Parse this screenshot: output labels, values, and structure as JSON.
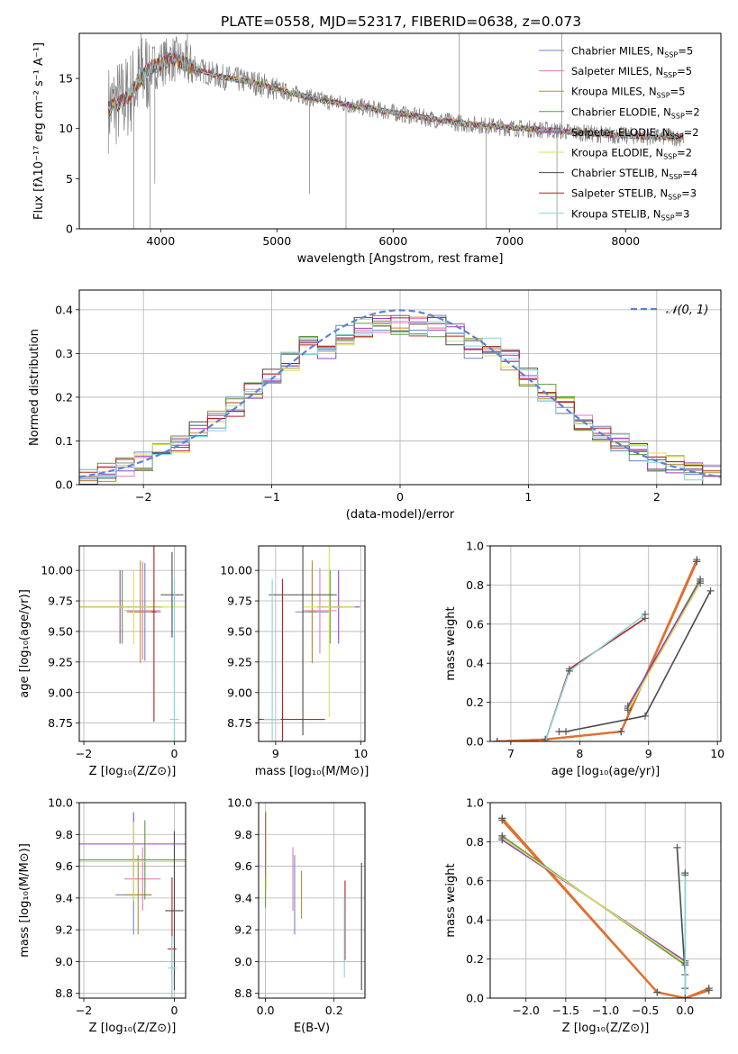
{
  "figure_title": "PLATE=0558, MJD=52317, FIBERID=0638, z=0.073",
  "colors": {
    "Chabrier MILES": "#6f86c4",
    "Salpeter MILES": "#e67ab8",
    "Kroupa MILES": "#b5902d",
    "Chabrier ELODIE": "#5a9a3b",
    "Salpeter ELODIE": "#9b3fc0",
    "Kroupa ELODIE": "#d6e05e",
    "Chabrier STELIB": "#4a4a4a",
    "Salpeter STELIB": "#b8201f",
    "Kroupa STELIB": "#86d4dc",
    "data": "#808080",
    "orange": "#e07030",
    "gaussian": "#5b82d6"
  },
  "chart_data": [
    {
      "id": "spectrum",
      "type": "line",
      "title": "PLATE=0558, MJD=52317, FIBERID=0638, z=0.073",
      "xlabel": "wavelength [Angstrom, rest frame]",
      "ylabel": "Flux [fλ10⁻¹⁷ erg cm⁻² s⁻¹ A⁻¹]",
      "xlim": [
        3300,
        8820
      ],
      "ylim": [
        0,
        19.5
      ],
      "xticks": [
        4000,
        5000,
        6000,
        7000,
        8000
      ],
      "yticks": [
        0,
        5,
        10,
        15
      ],
      "legend": "top-right",
      "legend_entries": [
        {
          "name": "Chabrier MILES",
          "sub": "SSP",
          "n": "5"
        },
        {
          "name": "Salpeter MILES",
          "sub": "SSP",
          "n": "5"
        },
        {
          "name": "Kroupa MILES",
          "sub": "SSP",
          "n": "5"
        },
        {
          "name": "Chabrier ELODIE",
          "sub": "SSP",
          "n": "2"
        },
        {
          "name": "Salpeter ELODIE",
          "sub": "SSP",
          "n": "2"
        },
        {
          "name": "Kroupa ELODIE",
          "sub": "SSP",
          "n": "2"
        },
        {
          "name": "Chabrier STELIB",
          "sub": "SSP",
          "n": "4"
        },
        {
          "name": "Salpeter STELIB",
          "sub": "SSP",
          "n": "3"
        },
        {
          "name": "Kroupa STELIB",
          "sub": "SSP",
          "n": "3"
        }
      ],
      "continuum": [
        [
          3550,
          12.0
        ],
        [
          3700,
          13.0
        ],
        [
          3900,
          16.0
        ],
        [
          4100,
          17.0
        ],
        [
          4300,
          16.0
        ],
        [
          4500,
          15.2
        ],
        [
          4800,
          14.6
        ],
        [
          5100,
          13.6
        ],
        [
          5400,
          12.8
        ],
        [
          5800,
          12.0
        ],
        [
          6200,
          11.2
        ],
        [
          6600,
          10.5
        ],
        [
          7000,
          10.1
        ],
        [
          7400,
          9.8
        ],
        [
          7800,
          9.4
        ],
        [
          8200,
          9.2
        ],
        [
          8500,
          9.1
        ]
      ],
      "spikes": [
        [
          3770,
          0
        ],
        [
          3830,
          19.5
        ],
        [
          3910,
          0
        ],
        [
          3950,
          4.5
        ],
        [
          4230,
          19.5
        ],
        [
          5280,
          3.5
        ],
        [
          5595,
          0
        ],
        [
          6570,
          19.5
        ],
        [
          6800,
          0
        ],
        [
          7410,
          0
        ],
        [
          7450,
          19.5
        ]
      ]
    },
    {
      "id": "residuals",
      "type": "line",
      "xlabel": "(data-model)/error",
      "ylabel": "Normed distribution",
      "xlim": [
        -2.5,
        2.5
      ],
      "ylim": [
        0,
        0.445
      ],
      "xticks": [
        -2,
        -1,
        0,
        1,
        2
      ],
      "yticks": [
        0.0,
        0.1,
        0.2,
        0.3,
        0.4
      ],
      "legend": "top-right",
      "legend_label": "𝒩(0, 1)",
      "gaussian": {
        "mu": 0,
        "sigma": 1
      }
    },
    {
      "id": "age-vs-Z",
      "type": "scatter",
      "xlabel": "Z [log₁₀(Z/Z⊙)]",
      "ylabel": "age  [log₁₀(age/yr)]",
      "xlim": [
        -2.1,
        0.25
      ],
      "ylim": [
        8.6,
        10.2
      ],
      "xticks": [
        -2,
        0
      ],
      "yticks": [
        8.75,
        9.0,
        9.25,
        9.5,
        9.75,
        10.0
      ],
      "points": [
        {
          "model": "Chabrier MILES",
          "x": -0.65,
          "y": 9.66,
          "xerr": 0.35,
          "yerr": 0.4
        },
        {
          "model": "Salpeter MILES",
          "x": -0.7,
          "y": 9.67,
          "xerr": 0.4,
          "yerr": 0.4
        },
        {
          "model": "Kroupa MILES",
          "x": -0.75,
          "y": 9.66,
          "xerr": 0.3,
          "yerr": 0.42
        },
        {
          "model": "Chabrier ELODIE",
          "x": -1.15,
          "y": 9.7,
          "xerr": 0.9,
          "yerr": 0.3
        },
        {
          "model": "Salpeter ELODIE",
          "x": -1.2,
          "y": 9.7,
          "xerr": 0.9,
          "yerr": 0.3
        },
        {
          "model": "Kroupa ELODIE",
          "x": -0.9,
          "y": 9.7,
          "xerr": 1.2,
          "yerr": 0.3
        },
        {
          "model": "Chabrier STELIB",
          "x": -0.05,
          "y": 9.8,
          "xerr": 0.25,
          "yerr": 0.35
        },
        {
          "model": "Salpeter STELIB",
          "x": -0.45,
          "y": 9.66,
          "xerr": 0.05,
          "yerr": 0.9
        },
        {
          "model": "Kroupa STELIB",
          "x": 0.0,
          "y": 8.78,
          "xerr": 0.1,
          "yerr": 1.15
        }
      ]
    },
    {
      "id": "age-vs-mass",
      "type": "scatter",
      "xlabel": "mass [log₁₀(M/M⊙)]",
      "ylabel": "",
      "xlim": [
        8.8,
        10.05
      ],
      "ylim": [
        8.6,
        10.2
      ],
      "xticks": [
        9,
        10
      ],
      "yticks": [
        8.75,
        9.0,
        9.25,
        9.5,
        9.75,
        10.0
      ],
      "points": [
        {
          "model": "Chabrier MILES",
          "x": 9.43,
          "y": 9.66,
          "xerr": 0.2,
          "yerr": 0.35
        },
        {
          "model": "Salpeter MILES",
          "x": 9.52,
          "y": 9.67,
          "xerr": 0.2,
          "yerr": 0.35
        },
        {
          "model": "Kroupa MILES",
          "x": 9.43,
          "y": 9.66,
          "xerr": 0.05,
          "yerr": 0.42
        },
        {
          "model": "Chabrier ELODIE",
          "x": 9.64,
          "y": 9.7,
          "xerr": 0.15,
          "yerr": 0.3
        },
        {
          "model": "Salpeter ELODIE",
          "x": 9.74,
          "y": 9.7,
          "xerr": 0.25,
          "yerr": 0.3
        },
        {
          "model": "Kroupa ELODIE",
          "x": 9.63,
          "y": 9.7,
          "xerr": 0.3,
          "yerr": 0.9
        },
        {
          "model": "Chabrier STELIB",
          "x": 9.32,
          "y": 9.8,
          "xerr": 0.4,
          "yerr": 1.15
        },
        {
          "model": "Salpeter STELIB",
          "x": 9.08,
          "y": 8.78,
          "xerr": 0.5,
          "yerr": 1.15
        },
        {
          "model": "Kroupa STELIB",
          "x": 8.96,
          "y": 8.78,
          "xerr": 0.1,
          "yerr": 1.15
        }
      ]
    },
    {
      "id": "weight-vs-age",
      "type": "line",
      "xlabel": "age  [log₁₀(age/yr)]",
      "ylabel": "mass weight",
      "xlim": [
        6.7,
        10.05
      ],
      "ylim": [
        0,
        1.0
      ],
      "xticks": [
        7,
        8,
        9,
        10
      ],
      "yticks": [
        0.0,
        0.2,
        0.4,
        0.6,
        0.8,
        1.0
      ],
      "series": [
        {
          "model": "Chabrier MILES",
          "x": [
            6.8,
            7.5,
            8.6,
            9.7
          ],
          "y": [
            0.0,
            0.01,
            0.05,
            0.93
          ]
        },
        {
          "model": "Salpeter MILES",
          "x": [
            6.8,
            7.5,
            8.6,
            9.7
          ],
          "y": [
            0.0,
            0.01,
            0.05,
            0.92
          ]
        },
        {
          "model": "Kroupa MILES",
          "x": [
            6.8,
            7.5,
            8.6,
            9.7
          ],
          "y": [
            0.0,
            0.01,
            0.05,
            0.92
          ]
        },
        {
          "model": "Chabrier ELODIE",
          "x": [
            8.7,
            9.75
          ],
          "y": [
            0.17,
            0.83
          ]
        },
        {
          "model": "Salpeter ELODIE",
          "x": [
            8.7,
            9.75
          ],
          "y": [
            0.18,
            0.82
          ]
        },
        {
          "model": "Kroupa ELODIE",
          "x": [
            8.7,
            9.75
          ],
          "y": [
            0.16,
            0.81
          ]
        },
        {
          "model": "Chabrier STELIB",
          "x": [
            7.7,
            7.8,
            8.95,
            9.9
          ],
          "y": [
            0.05,
            0.05,
            0.13,
            0.77
          ]
        },
        {
          "model": "Salpeter STELIB",
          "x": [
            7.5,
            7.85,
            8.95
          ],
          "y": [
            0.0,
            0.37,
            0.63
          ]
        },
        {
          "model": "Kroupa STELIB",
          "x": [
            7.5,
            7.85,
            8.95
          ],
          "y": [
            0.0,
            0.36,
            0.65
          ]
        }
      ]
    },
    {
      "id": "mass-vs-Z",
      "type": "scatter",
      "xlabel": "Z [log₁₀(Z/Z⊙)]",
      "ylabel": "mass [log₁₀(M/M⊙)]",
      "xlim": [
        -2.1,
        0.25
      ],
      "ylim": [
        8.77,
        10.0
      ],
      "xticks": [
        -2,
        0
      ],
      "yticks": [
        8.8,
        9.0,
        9.2,
        9.4,
        9.6,
        9.8,
        10.0
      ],
      "points": [
        {
          "model": "Chabrier MILES",
          "x": -0.9,
          "y": 9.42,
          "xerr": 0.4,
          "yerr": 0.25
        },
        {
          "model": "Salpeter MILES",
          "x": -0.7,
          "y": 9.52,
          "xerr": 0.4,
          "yerr": 0.2
        },
        {
          "model": "Kroupa MILES",
          "x": -0.8,
          "y": 9.42,
          "xerr": 0.3,
          "yerr": 0.25
        },
        {
          "model": "Chabrier ELODIE",
          "x": -0.65,
          "y": 9.64,
          "xerr": 1.5,
          "yerr": 0.25
        },
        {
          "model": "Salpeter ELODIE",
          "x": -0.9,
          "y": 9.74,
          "xerr": 1.2,
          "yerr": 0.2
        },
        {
          "model": "Kroupa ELODIE",
          "x": -0.9,
          "y": 9.63,
          "xerr": 1.2,
          "yerr": 0.25
        },
        {
          "model": "Chabrier STELIB",
          "x": 0.0,
          "y": 9.32,
          "xerr": 0.2,
          "yerr": 0.5
        },
        {
          "model": "Salpeter STELIB",
          "x": -0.05,
          "y": 9.08,
          "xerr": 0.1,
          "yerr": 0.45
        },
        {
          "model": "Kroupa STELIB",
          "x": -0.05,
          "y": 8.96,
          "xerr": 0.1,
          "yerr": 0.2
        }
      ]
    },
    {
      "id": "mass-vs-EBV",
      "type": "scatter",
      "xlabel": "E(B-V)",
      "ylabel": "",
      "xlim": [
        -0.02,
        0.29
      ],
      "ylim": [
        8.77,
        10.0
      ],
      "xticks": [
        0.0,
        0.2
      ],
      "yticks": [
        8.8,
        9.0,
        9.2,
        9.4,
        9.6,
        9.8,
        10.0
      ],
      "points": [
        {
          "model": "Chabrier MILES",
          "x": 0.085,
          "y": 9.42,
          "xerr": 0,
          "yerr": 0.25
        },
        {
          "model": "Salpeter MILES",
          "x": 0.08,
          "y": 9.52,
          "xerr": 0,
          "yerr": 0.2
        },
        {
          "model": "Kroupa MILES",
          "x": 0.105,
          "y": 9.42,
          "xerr": 0,
          "yerr": 0.15
        },
        {
          "model": "Chabrier ELODIE",
          "x": 0.0,
          "y": 9.64,
          "xerr": 0,
          "yerr": 0.3
        },
        {
          "model": "Salpeter ELODIE",
          "x": 0.0,
          "y": 9.74,
          "xerr": 0,
          "yerr": 0.2
        },
        {
          "model": "Kroupa ELODIE",
          "x": 0.002,
          "y": 9.7,
          "xerr": 0,
          "yerr": 0.25
        },
        {
          "model": "Chabrier STELIB",
          "x": 0.28,
          "y": 9.22,
          "xerr": 0,
          "yerr": 0.4
        },
        {
          "model": "Salpeter STELIB",
          "x": 0.232,
          "y": 9.26,
          "xerr": 0,
          "yerr": 0.25
        },
        {
          "model": "Kroupa STELIB",
          "x": 0.23,
          "y": 9.15,
          "xerr": 0,
          "yerr": 0.25
        }
      ]
    },
    {
      "id": "weight-vs-Z",
      "type": "line",
      "xlabel": "Z [log₁₀(Z/Z⊙)]",
      "ylabel": "mass weight",
      "xlim": [
        -2.45,
        0.45
      ],
      "ylim": [
        0,
        1.0
      ],
      "xticks": [
        -2.0,
        -1.5,
        -1.0,
        -0.5,
        0.0
      ],
      "yticks": [
        0.0,
        0.2,
        0.4,
        0.6,
        0.8,
        1.0
      ],
      "series": [
        {
          "model": "Chabrier MILES",
          "x": [
            -2.3,
            -0.35,
            0.0,
            0.3
          ],
          "y": [
            0.92,
            0.03,
            0.0,
            0.04
          ]
        },
        {
          "model": "Salpeter MILES",
          "x": [
            -2.3,
            -0.35,
            0.0,
            0.3
          ],
          "y": [
            0.92,
            0.03,
            0.0,
            0.05
          ]
        },
        {
          "model": "Kroupa MILES",
          "x": [
            -2.3,
            -0.35,
            0.0,
            0.3
          ],
          "y": [
            0.91,
            0.03,
            0.0,
            0.04
          ]
        },
        {
          "model": "Chabrier ELODIE",
          "x": [
            -2.3,
            0.0
          ],
          "y": [
            0.83,
            0.17
          ]
        },
        {
          "model": "Salpeter ELODIE",
          "x": [
            -2.3,
            0.0
          ],
          "y": [
            0.81,
            0.19
          ]
        },
        {
          "model": "Kroupa ELODIE",
          "x": [
            -2.3,
            0.0
          ],
          "y": [
            0.82,
            0.18
          ]
        },
        {
          "model": "Chabrier STELIB",
          "x": [
            -0.1,
            0.0,
            0.0
          ],
          "y": [
            0.77,
            0.12,
            0.05
          ]
        },
        {
          "model": "Salpeter STELIB",
          "x": [
            0.0,
            0.0
          ],
          "y": [
            0.0,
            0.63
          ]
        },
        {
          "model": "Kroupa STELIB",
          "x": [
            0.0,
            0.0
          ],
          "y": [
            0.0,
            0.64
          ]
        }
      ]
    }
  ]
}
